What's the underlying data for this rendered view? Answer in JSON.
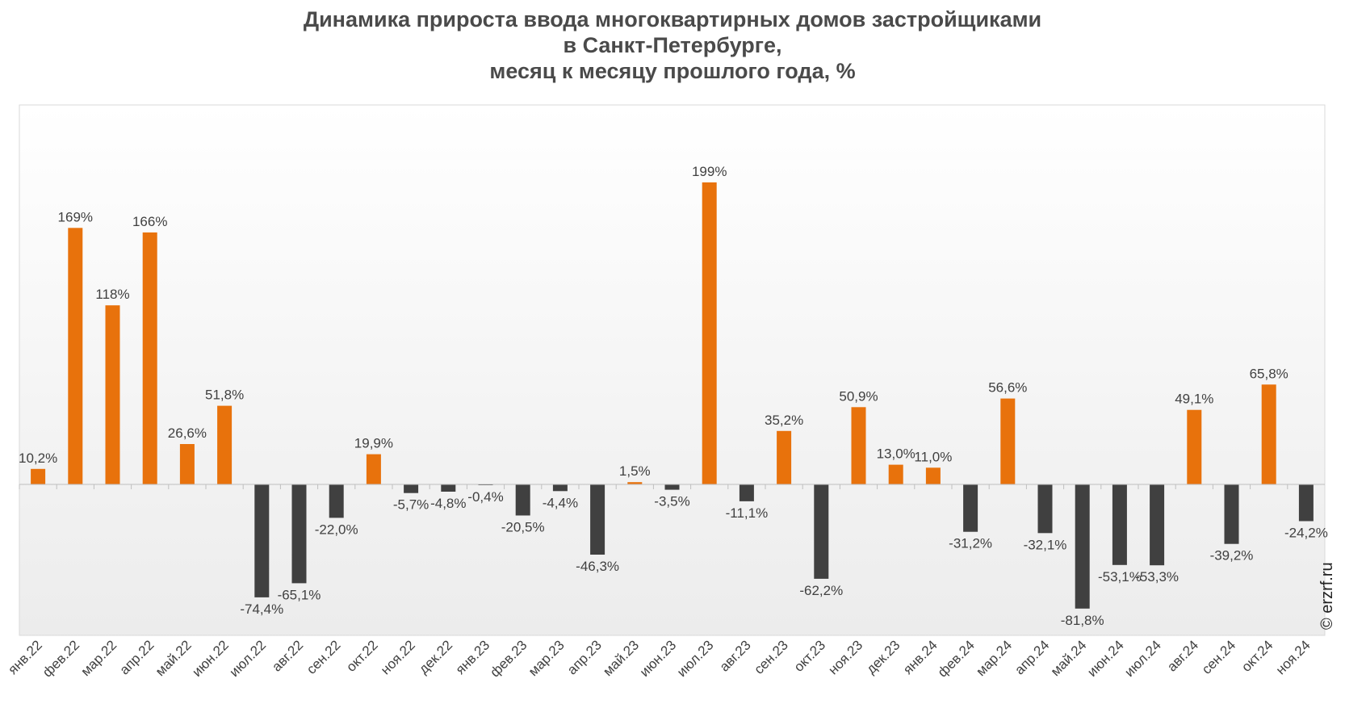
{
  "chart_data": {
    "type": "bar",
    "title_lines": [
      "Динамика прироста ввода многоквартирных домов застройщиками",
      "в Санкт-Петербурге,",
      "месяц к месяцу прошлого года, %"
    ],
    "categories": [
      "янв.22",
      "фев.22",
      "мар.22",
      "апр.22",
      "май.22",
      "июн.22",
      "июл.22",
      "авг.22",
      "сен.22",
      "окт.22",
      "ноя.22",
      "дек.22",
      "янв.23",
      "фев.23",
      "мар.23",
      "апр.23",
      "май.23",
      "июн.23",
      "июл.23",
      "авг.23",
      "сен.23",
      "окт.23",
      "ноя.23",
      "дек.23",
      "янв.24",
      "фев.24",
      "мар.24",
      "апр.24",
      "май.24",
      "июн.24",
      "июл.24",
      "авг.24",
      "сен.24",
      "окт.24",
      "ноя.24"
    ],
    "values": [
      10.2,
      169,
      118,
      166,
      26.6,
      51.8,
      -74.4,
      -65.1,
      -22.0,
      19.9,
      -5.7,
      -4.8,
      -0.4,
      -20.5,
      -4.4,
      -46.3,
      1.5,
      -3.5,
      199,
      -11.1,
      35.2,
      -62.2,
      50.9,
      13.0,
      11.0,
      -31.2,
      56.6,
      -32.1,
      -81.8,
      -53.1,
      -53.3,
      49.1,
      -39.2,
      65.8,
      -24.2
    ],
    "labels": [
      "10,2%",
      "169%",
      "118%",
      "166%",
      "26,6%",
      "51,8%",
      "-74,4%",
      "-65,1%",
      "-22,0%",
      "19,9%",
      "-5,7%",
      "-4,8%",
      "-0,4%",
      "-20,5%",
      "-4,4%",
      "-46,3%",
      "1,5%",
      "-3,5%",
      "199%",
      "-11,1%",
      "35,2%",
      "-62,2%",
      "50,9%",
      "13,0%",
      "11,0%",
      "-31,2%",
      "56,6%",
      "-32,1%",
      "-81,8%",
      "-53,1%",
      "-53,3%",
      "49,1%",
      "-39,2%",
      "65,8%",
      "-24,2%"
    ],
    "positive_color": "#E8720C",
    "negative_color": "#404040",
    "xlabel": "",
    "ylabel": "",
    "grid": false,
    "legend": "none"
  },
  "copyright": "© erzrf.ru"
}
